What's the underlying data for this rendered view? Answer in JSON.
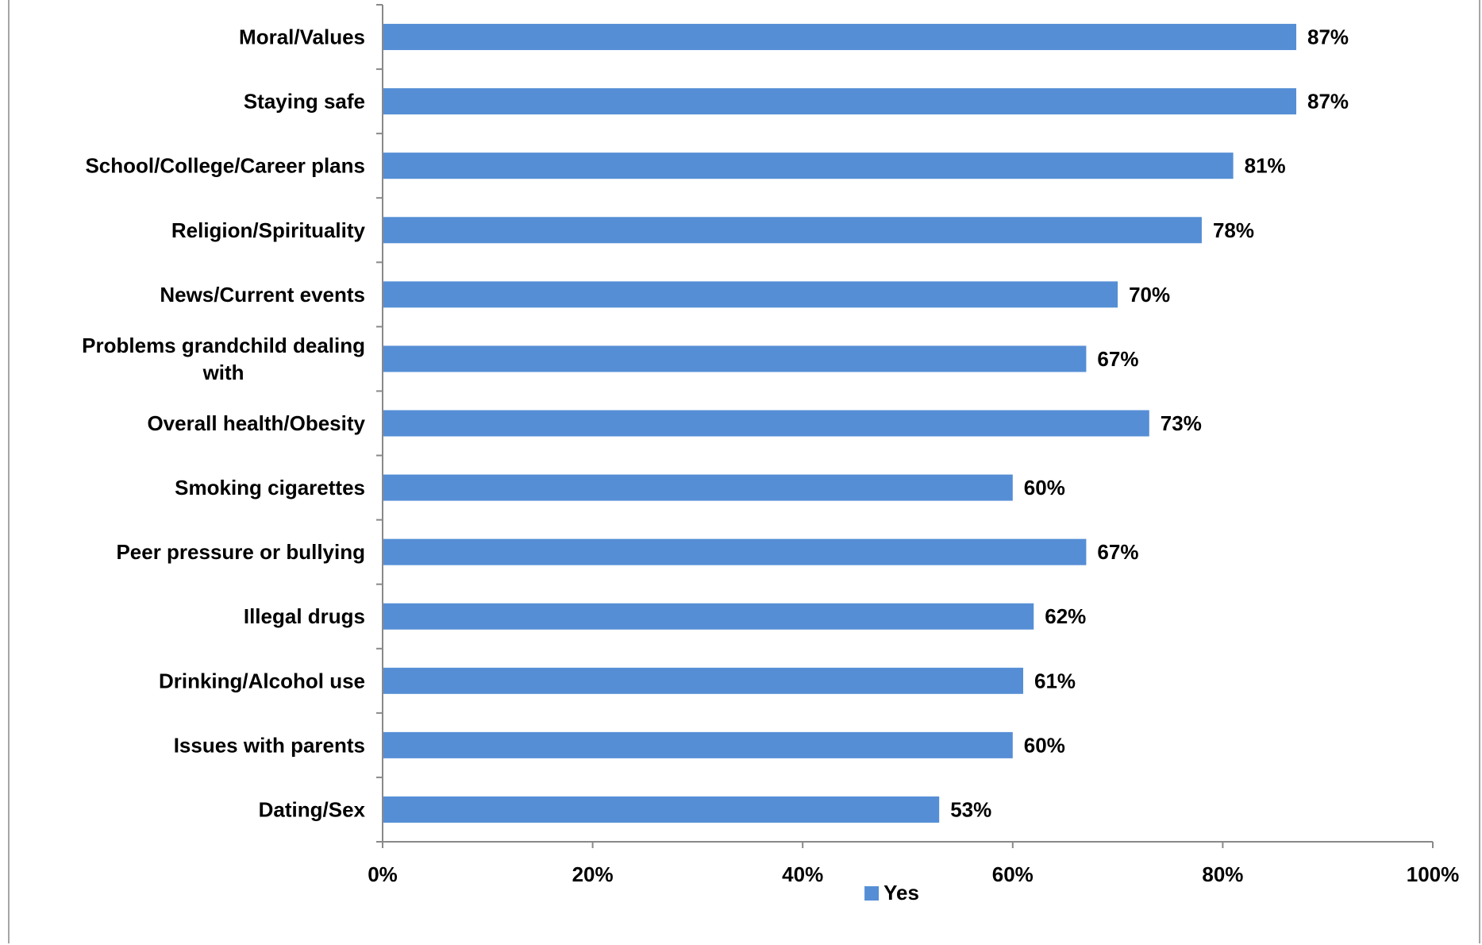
{
  "chart_data": {
    "type": "bar",
    "orientation": "horizontal",
    "categories": [
      "Moral/Values",
      "Staying safe",
      "School/College/Career plans",
      "Religion/Spirituality",
      "News/Current events",
      "Problems grandchild dealing with",
      "Overall health/Obesity",
      "Smoking cigarettes",
      "Peer pressure or bullying",
      "Illegal drugs",
      "Drinking/Alcohol use",
      "Issues with parents",
      "Dating/Sex"
    ],
    "series": [
      {
        "name": "Yes",
        "color": "#558ed5",
        "values": [
          87,
          87,
          81,
          78,
          70,
          67,
          73,
          60,
          67,
          62,
          61,
          60,
          53
        ],
        "labels": [
          "87%",
          "87%",
          "81%",
          "78%",
          "70%",
          "67%",
          "73%",
          "60%",
          "67%",
          "62%",
          "61%",
          "60%",
          "53%"
        ]
      }
    ],
    "xlim": [
      0,
      100
    ],
    "xticks": [
      0,
      20,
      40,
      60,
      80,
      100
    ],
    "xtick_labels": [
      "0%",
      "20%",
      "40%",
      "60%",
      "80%",
      "100%"
    ],
    "grid": false,
    "legend": {
      "position": "bottom",
      "entries": [
        "Yes"
      ]
    }
  }
}
